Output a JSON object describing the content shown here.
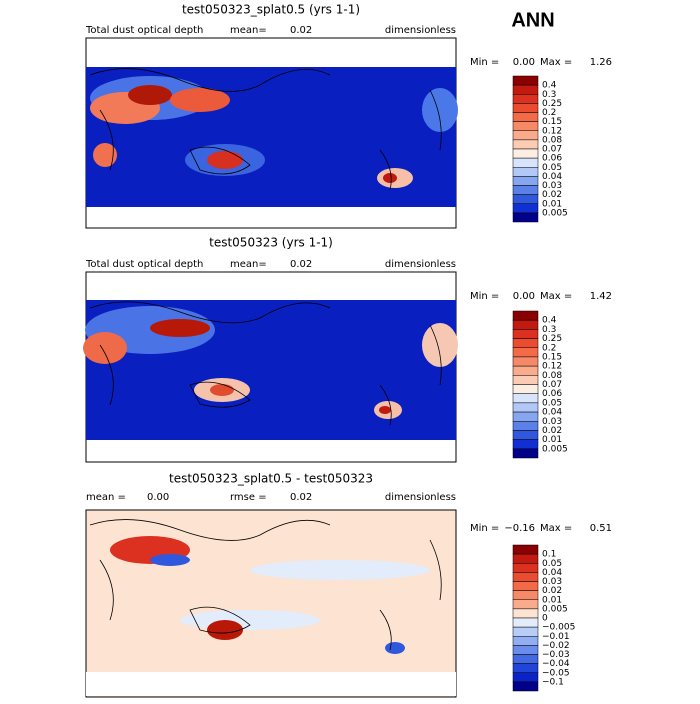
{
  "header": {
    "season": "ANN"
  },
  "panels": [
    {
      "title": "test050323_splat0.5 (yrs 1-1)",
      "subtitle": {
        "variable": "Total dust optical depth",
        "mean_label": "mean=",
        "mean": "0.02",
        "units": "dimensionless"
      },
      "range": {
        "min_label": "Min =",
        "min": "0.00",
        "max_label": "Max =",
        "max": "1.26"
      },
      "colorbar": {
        "labels": [
          "0.4",
          "0.3",
          "0.25",
          "0.2",
          "0.15",
          "0.12",
          "0.08",
          "0.07",
          "0.06",
          "0.05",
          "0.04",
          "0.03",
          "0.02",
          "0.01",
          "0.005"
        ],
        "colors": [
          "#8b0000",
          "#c21a10",
          "#dc3020",
          "#ea4c30",
          "#f26a48",
          "#f68a68",
          "#f9ab8c",
          "#fccbb4",
          "#fdeee4",
          "#d8e4fb",
          "#b2c8f6",
          "#86a6f0",
          "#5b80e8",
          "#3058de",
          "#1030d2",
          "#00008b"
        ]
      }
    },
    {
      "title": "test050323 (yrs 1-1)",
      "subtitle": {
        "variable": "Total dust optical depth",
        "mean_label": "mean=",
        "mean": "0.02",
        "units": "dimensionless"
      },
      "range": {
        "min_label": "Min =",
        "min": "0.00",
        "max_label": "Max =",
        "max": "1.42"
      },
      "colorbar": {
        "labels": [
          "0.4",
          "0.3",
          "0.25",
          "0.2",
          "0.15",
          "0.12",
          "0.08",
          "0.07",
          "0.06",
          "0.05",
          "0.04",
          "0.03",
          "0.02",
          "0.01",
          "0.005"
        ],
        "colors": [
          "#8b0000",
          "#c21a10",
          "#dc3020",
          "#ea4c30",
          "#f26a48",
          "#f68a68",
          "#f9ab8c",
          "#fccbb4",
          "#fdeee4",
          "#d8e4fb",
          "#b2c8f6",
          "#86a6f0",
          "#5b80e8",
          "#3058de",
          "#1030d2",
          "#00008b"
        ]
      }
    },
    {
      "title": "test050323_splat0.5 - test050323",
      "subtitle": {
        "mean_label": "mean =",
        "mean": "0.00",
        "rmse_label": "rmse =",
        "rmse": "0.02",
        "units": "dimensionless"
      },
      "range": {
        "min_label": "Min =",
        "min": "−0.16",
        "max_label": "Max =",
        "max": "0.51"
      },
      "colorbar": {
        "labels": [
          "0.1",
          "0.05",
          "0.04",
          "0.03",
          "0.02",
          "0.01",
          "0.005",
          "0",
          "−0.005",
          "−0.01",
          "−0.02",
          "−0.03",
          "−0.04",
          "−0.05",
          "−0.1"
        ],
        "colors": [
          "#8b0000",
          "#c21a10",
          "#dc3020",
          "#ea4c30",
          "#f26a48",
          "#f68a68",
          "#f9ab8c",
          "#fde3d2",
          "#e2ecfb",
          "#b8cdf6",
          "#90aef1",
          "#6a8ceb",
          "#4268e2",
          "#2045d8",
          "#0a22c8",
          "#00008b"
        ]
      }
    }
  ]
}
